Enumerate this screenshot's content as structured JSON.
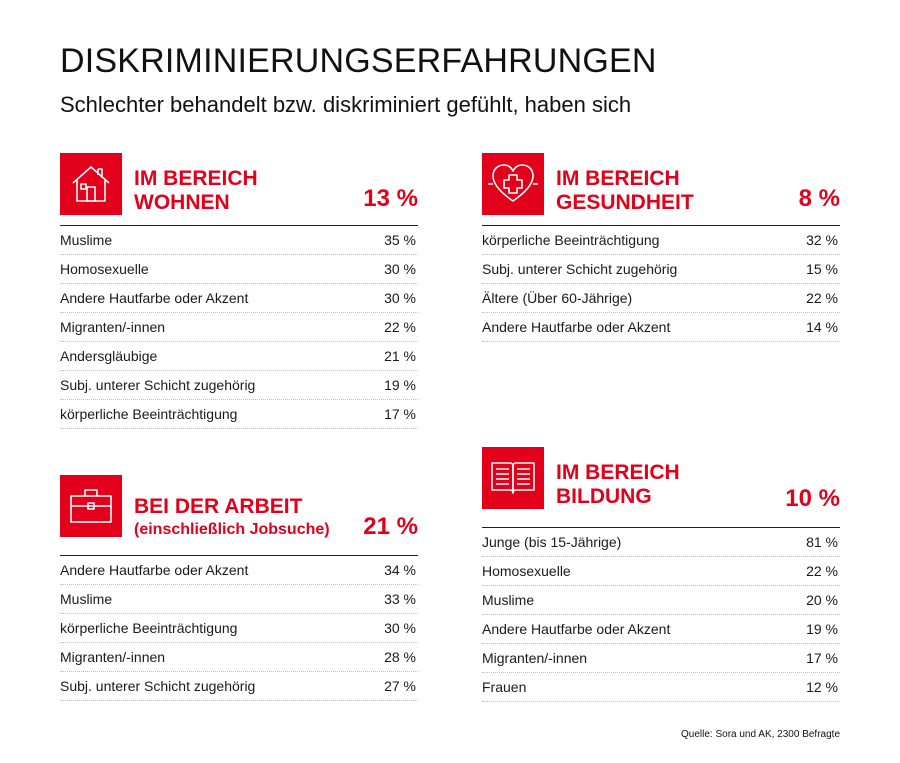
{
  "header": {
    "title": "DISKRIMINIERUNGSERFAHRUNGEN",
    "subtitle": "Schlechter behandelt bzw. diskriminiert gefühlt, haben sich"
  },
  "colors": {
    "accent": "#e2001a"
  },
  "panels": {
    "wohnen": {
      "icon": "house-icon",
      "title_line1": "IM BEREICH",
      "title_line2": "WOHNEN",
      "total": "13 %",
      "rows": [
        {
          "label": "Muslime",
          "value": "35 %"
        },
        {
          "label": "Homosexuelle",
          "value": "30 %"
        },
        {
          "label": "Andere Hautfarbe oder Akzent",
          "value": "30 %"
        },
        {
          "label": "Migranten/-innen",
          "value": "22 %"
        },
        {
          "label": "Andersgläubige",
          "value": "21 %"
        },
        {
          "label": "Subj. unterer Schicht zugehörig",
          "value": "19 %"
        },
        {
          "label": "körperliche Beeinträchtigung",
          "value": "17 %"
        }
      ]
    },
    "gesundheit": {
      "icon": "heart-cross-icon",
      "title_line1": "IM BEREICH",
      "title_line2": "GESUNDHEIT",
      "total": "8 %",
      "rows": [
        {
          "label": "körperliche Beeinträchtigung",
          "value": "32 %"
        },
        {
          "label": "Subj. unterer Schicht zugehörig",
          "value": "15 %"
        },
        {
          "label": "Ältere (Über 60-Jährige)",
          "value": "22 %"
        },
        {
          "label": "Andere Hautfarbe oder Akzent",
          "value": "14 %"
        }
      ]
    },
    "arbeit": {
      "icon": "briefcase-icon",
      "title_line1": "BEI DER ARBEIT",
      "title_line2": "(einschließlich Jobsuche)",
      "total": "21 %",
      "rows": [
        {
          "label": "Andere Hautfarbe oder Akzent",
          "value": "34 %"
        },
        {
          "label": "Muslime",
          "value": "33 %"
        },
        {
          "label": "körperliche Beeinträchtigung",
          "value": "30 %"
        },
        {
          "label": "Migranten/-innen",
          "value": "28 %"
        },
        {
          "label": "Subj. unterer Schicht zugehörig",
          "value": "27 %"
        }
      ]
    },
    "bildung": {
      "icon": "open-book-icon",
      "title_line1": "IM BEREICH",
      "title_line2": "BILDUNG",
      "total": "10 %",
      "rows": [
        {
          "label": "Junge (bis 15-Jährige)",
          "value": "81 %"
        },
        {
          "label": "Homosexuelle",
          "value": "22 %"
        },
        {
          "label": "Muslime",
          "value": "20 %"
        },
        {
          "label": "Andere Hautfarbe oder Akzent",
          "value": "19 %"
        },
        {
          "label": "Migranten/-innen",
          "value": "17 %"
        },
        {
          "label": "Frauen",
          "value": "12 %"
        }
      ]
    }
  },
  "footer": {
    "source": "Quelle: Sora und AK, 2300 Befragte"
  }
}
